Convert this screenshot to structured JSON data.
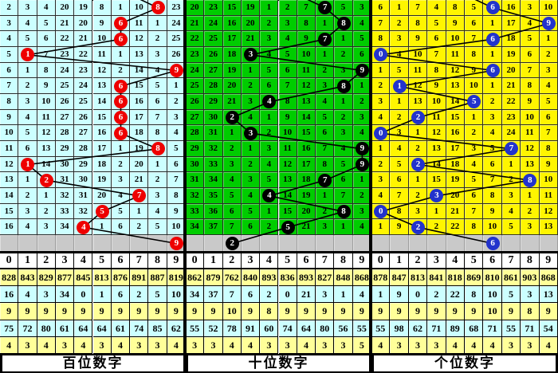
{
  "chart_data": {
    "type": "table",
    "subtype": "lottery-digit-trend-chart",
    "columns": [
      "0",
      "1",
      "2",
      "3",
      "4",
      "5",
      "6",
      "7",
      "8",
      "9"
    ],
    "colors": {
      "hundreds_bg": "#CCFFFF",
      "tens_bg": "#00CC00",
      "units_bg": "#FFF500",
      "hundreds_marker": "#EE0000",
      "tens_marker": "#000000",
      "units_marker": "#2233CC",
      "spacer_row_bg": "#C9C9C9",
      "stats_yellow": "#FFFF99",
      "stats_cyan": "#CCFFFF",
      "trend_line": "#000000"
    },
    "panels": [
      {
        "name": "hundreds",
        "footer_label": "百位数字",
        "bg": "#CCFFFF",
        "marker_color": "#EE0000",
        "header": [
          "0",
          "1",
          "2",
          "3",
          "4",
          "5",
          "6",
          "7",
          "8",
          "9"
        ],
        "rows": [
          {
            "cells": [
              2,
              3,
              4,
              20,
              19,
              8,
              1,
              10,
              8,
              23
            ],
            "hit": 8
          },
          {
            "cells": [
              3,
              4,
              5,
              21,
              20,
              9,
              6,
              11,
              1,
              24
            ],
            "hit": 6
          },
          {
            "cells": [
              4,
              5,
              6,
              22,
              21,
              10,
              6,
              12,
              2,
              25
            ],
            "hit": 6
          },
          {
            "cells": [
              5,
              1,
              7,
              23,
              22,
              11,
              1,
              13,
              3,
              26
            ],
            "hit": 1
          },
          {
            "cells": [
              6,
              1,
              8,
              24,
              23,
              12,
              2,
              14,
              4,
              9
            ],
            "hit": 9
          },
          {
            "cells": [
              7,
              2,
              9,
              25,
              24,
              13,
              6,
              15,
              5,
              1
            ],
            "hit": 6
          },
          {
            "cells": [
              8,
              3,
              10,
              26,
              25,
              14,
              6,
              16,
              6,
              2
            ],
            "hit": 6
          },
          {
            "cells": [
              9,
              4,
              11,
              27,
              26,
              15,
              6,
              17,
              7,
              3
            ],
            "hit": 6
          },
          {
            "cells": [
              10,
              5,
              12,
              28,
              27,
              16,
              6,
              18,
              8,
              4
            ],
            "hit": 6
          },
          {
            "cells": [
              11,
              6,
              13,
              29,
              28,
              17,
              1,
              19,
              8,
              5
            ],
            "hit": 8
          },
          {
            "cells": [
              12,
              1,
              14,
              30,
              29,
              18,
              2,
              20,
              1,
              6
            ],
            "hit": 1
          },
          {
            "cells": [
              13,
              1,
              2,
              31,
              30,
              19,
              3,
              21,
              2,
              7
            ],
            "hit": 2
          },
          {
            "cells": [
              14,
              2,
              1,
              32,
              31,
              20,
              4,
              7,
              3,
              8
            ],
            "hit": 7
          },
          {
            "cells": [
              15,
              3,
              2,
              33,
              32,
              5,
              5,
              1,
              4,
              9
            ],
            "hit": 5
          },
          {
            "cells": [
              16,
              4,
              3,
              34,
              4,
              1,
              6,
              2,
              5,
              10
            ],
            "hit": 4
          }
        ],
        "predicted": 9,
        "stats_rows": [
          [
            828,
            843,
            829,
            877,
            845,
            813,
            876,
            891,
            887,
            819
          ],
          [
            16,
            4,
            3,
            34,
            0,
            1,
            6,
            2,
            5,
            10
          ],
          [
            9,
            9,
            9,
            9,
            9,
            9,
            9,
            9,
            9,
            9
          ],
          [
            75,
            72,
            80,
            61,
            64,
            64,
            61,
            74,
            85,
            62
          ],
          [
            4,
            3,
            4,
            3,
            4,
            3,
            4,
            3,
            3,
            4
          ]
        ]
      },
      {
        "name": "tens",
        "footer_label": "十位数字",
        "bg": "#00CC00",
        "marker_color": "#000000",
        "header": [
          "0",
          "1",
          "2",
          "3",
          "4",
          "5",
          "6",
          "7",
          "8",
          "9"
        ],
        "rows": [
          {
            "cells": [
              20,
              23,
              15,
              19,
              1,
              2,
              7,
              7,
              5,
              3
            ],
            "hit": 7
          },
          {
            "cells": [
              21,
              24,
              16,
              20,
              2,
              3,
              8,
              1,
              8,
              4
            ],
            "hit": 8
          },
          {
            "cells": [
              22,
              25,
              17,
              21,
              3,
              4,
              9,
              7,
              1,
              5
            ],
            "hit": 7
          },
          {
            "cells": [
              23,
              26,
              18,
              3,
              4,
              5,
              10,
              1,
              2,
              6
            ],
            "hit": 3
          },
          {
            "cells": [
              24,
              27,
              19,
              1,
              5,
              6,
              11,
              2,
              3,
              9
            ],
            "hit": 9
          },
          {
            "cells": [
              25,
              28,
              20,
              2,
              6,
              7,
              12,
              3,
              8,
              1
            ],
            "hit": 8
          },
          {
            "cells": [
              26,
              29,
              21,
              3,
              4,
              8,
              13,
              4,
              1,
              2
            ],
            "hit": 4
          },
          {
            "cells": [
              27,
              30,
              2,
              4,
              1,
              9,
              14,
              5,
              2,
              3
            ],
            "hit": 2
          },
          {
            "cells": [
              28,
              31,
              1,
              3,
              2,
              10,
              15,
              6,
              3,
              4
            ],
            "hit": 3
          },
          {
            "cells": [
              29,
              32,
              2,
              1,
              3,
              11,
              16,
              7,
              4,
              9
            ],
            "hit": 9
          },
          {
            "cells": [
              30,
              33,
              3,
              2,
              4,
              12,
              17,
              8,
              5,
              9
            ],
            "hit": 9
          },
          {
            "cells": [
              31,
              34,
              4,
              3,
              5,
              13,
              18,
              7,
              6,
              1
            ],
            "hit": 7
          },
          {
            "cells": [
              32,
              35,
              5,
              4,
              4,
              14,
              19,
              1,
              7,
              2
            ],
            "hit": 4
          },
          {
            "cells": [
              33,
              36,
              6,
              5,
              1,
              15,
              20,
              2,
              8,
              3
            ],
            "hit": 8
          },
          {
            "cells": [
              34,
              37,
              7,
              6,
              2,
              5,
              21,
              3,
              1,
              4
            ],
            "hit": 5
          }
        ],
        "predicted": 2,
        "stats_rows": [
          [
            862,
            879,
            762,
            840,
            893,
            836,
            893,
            827,
            848,
            868
          ],
          [
            34,
            37,
            7,
            6,
            2,
            0,
            21,
            3,
            1,
            4
          ],
          [
            9,
            9,
            10,
            9,
            8,
            9,
            9,
            9,
            9,
            9
          ],
          [
            55,
            52,
            78,
            91,
            60,
            74,
            64,
            80,
            56,
            55
          ],
          [
            3,
            3,
            4,
            4,
            3,
            3,
            4,
            3,
            3,
            5
          ]
        ]
      },
      {
        "name": "units",
        "footer_label": "个位数字",
        "bg": "#FFF500",
        "marker_color": "#2233CC",
        "header": [
          "0",
          "1",
          "2",
          "3",
          "4",
          "5",
          "6",
          "7",
          "8",
          "9"
        ],
        "rows": [
          {
            "cells": [
              6,
              1,
              7,
              4,
              8,
              5,
              6,
              16,
              3,
              10
            ],
            "hit": 6
          },
          {
            "cells": [
              7,
              2,
              8,
              5,
              9,
              6,
              1,
              17,
              4,
              9
            ],
            "hit": 9
          },
          {
            "cells": [
              8,
              3,
              9,
              6,
              10,
              7,
              6,
              18,
              5,
              1
            ],
            "hit": 6
          },
          {
            "cells": [
              0,
              4,
              10,
              7,
              11,
              8,
              1,
              19,
              6,
              2
            ],
            "hit": 0
          },
          {
            "cells": [
              1,
              5,
              11,
              8,
              12,
              9,
              6,
              20,
              7,
              3
            ],
            "hit": 6
          },
          {
            "cells": [
              2,
              1,
              12,
              9,
              13,
              10,
              1,
              21,
              8,
              4
            ],
            "hit": 1
          },
          {
            "cells": [
              3,
              1,
              13,
              10,
              14,
              5,
              2,
              22,
              9,
              5
            ],
            "hit": 5
          },
          {
            "cells": [
              4,
              2,
              2,
              11,
              15,
              1,
              3,
              23,
              10,
              6
            ],
            "hit": 2
          },
          {
            "cells": [
              0,
              3,
              1,
              12,
              16,
              2,
              4,
              24,
              11,
              7
            ],
            "hit": 0
          },
          {
            "cells": [
              1,
              4,
              2,
              13,
              17,
              3,
              5,
              7,
              12,
              8
            ],
            "hit": 7
          },
          {
            "cells": [
              2,
              5,
              2,
              14,
              18,
              4,
              6,
              1,
              13,
              9
            ],
            "hit": 2
          },
          {
            "cells": [
              3,
              6,
              1,
              15,
              19,
              5,
              7,
              2,
              8,
              10
            ],
            "hit": 8
          },
          {
            "cells": [
              4,
              7,
              2,
              3,
              20,
              6,
              8,
              3,
              1,
              11
            ],
            "hit": 3
          },
          {
            "cells": [
              0,
              8,
              3,
              1,
              21,
              7,
              9,
              4,
              2,
              12
            ],
            "hit": 0
          },
          {
            "cells": [
              1,
              9,
              2,
              2,
              22,
              8,
              10,
              5,
              3,
              13
            ],
            "hit": 2
          }
        ],
        "predicted": 6,
        "stats_rows": [
          [
            878,
            847,
            813,
            841,
            818,
            869,
            810,
            861,
            903,
            868
          ],
          [
            1,
            9,
            0,
            2,
            22,
            8,
            10,
            5,
            3,
            13
          ],
          [
            9,
            9,
            9,
            9,
            9,
            9,
            10,
            9,
            8,
            9
          ],
          [
            55,
            98,
            62,
            71,
            89,
            68,
            71,
            55,
            71,
            54
          ],
          [
            4,
            3,
            3,
            3,
            4,
            4,
            4,
            3,
            3,
            4
          ]
        ]
      }
    ]
  }
}
